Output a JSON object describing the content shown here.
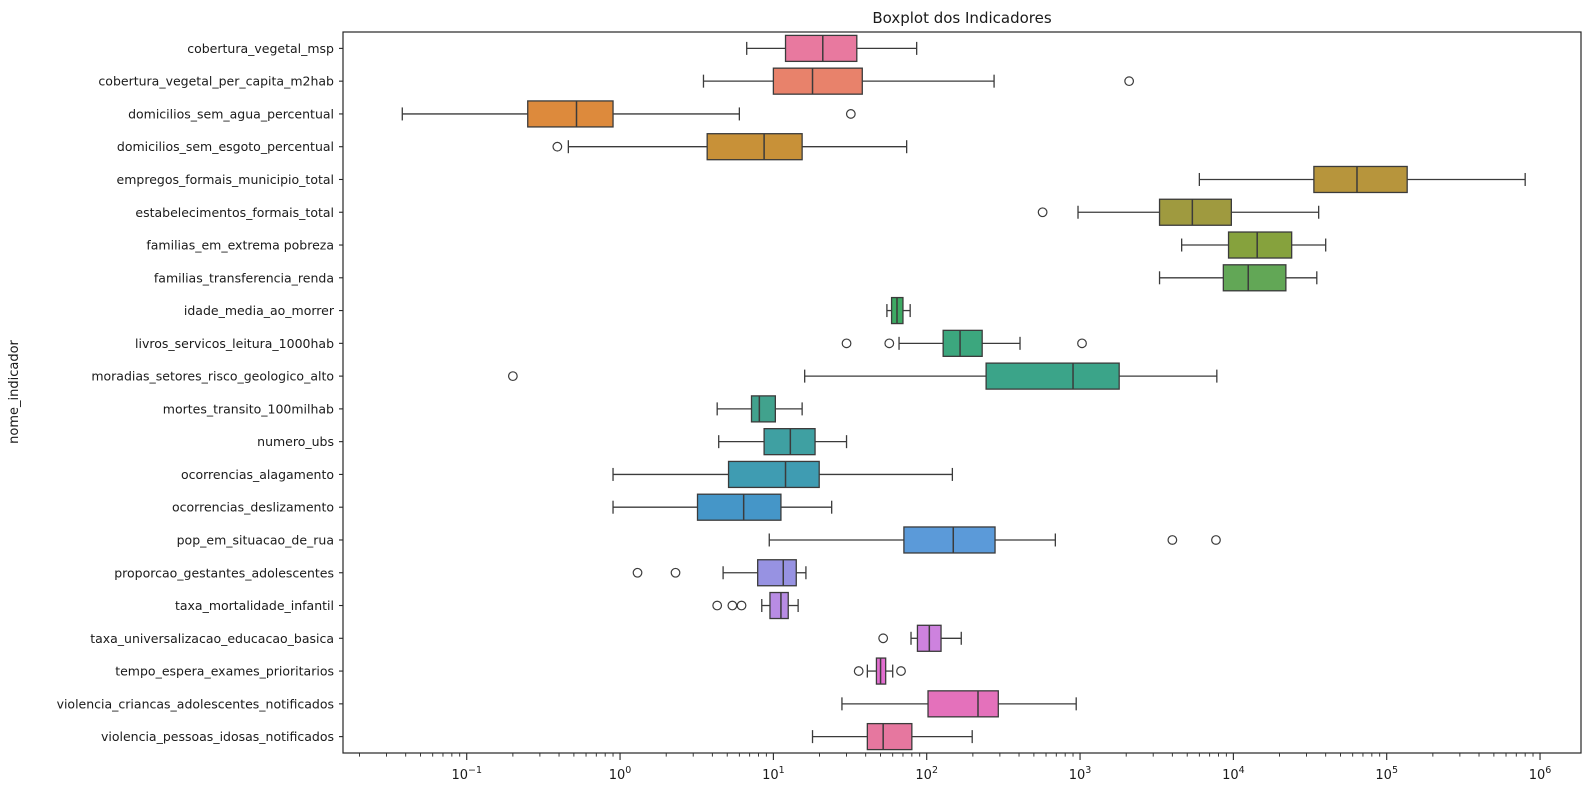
{
  "chart_data": {
    "type": "box",
    "orientation": "horizontal",
    "title": "Boxplot dos Indicadores",
    "ylabel": "nome_indicador",
    "xlabel": "",
    "x_scale": "log10",
    "grid": false,
    "legend": "none",
    "xlim": [
      0.0156,
      1850000
    ],
    "x_tick_exponents": [
      -1,
      0,
      1,
      2,
      3,
      4,
      5,
      6
    ],
    "x_tick_base": "10",
    "edge_color": "#3b3b3b",
    "spine_color": "#262626",
    "categories": [
      "cobertura_vegetal_msp",
      "cobertura_vegetal_per_capita_m2hab",
      "domicilios_sem_agua_percentual",
      "domicilios_sem_esgoto_percentual",
      "empregos_formais_municipio_total",
      "estabelecimentos_formais_total",
      "familias_em_extrema pobreza",
      "familias_transferencia_renda",
      "idade_media_ao_morrer",
      "livros_servicos_leitura_1000hab",
      "moradias_setores_risco_geologico_alto",
      "mortes_transito_100milhab",
      "numero_ubs",
      "ocorrencias_alagamento",
      "ocorrencias_deslizamento",
      "pop_em_situacao_de_rua",
      "proporcao_gestantes_adolescentes",
      "taxa_mortalidade_infantil",
      "taxa_universalizacao_educacao_basica",
      "tempo_espera_exames_prioritarios",
      "violencia_criancas_adolescentes_notificados",
      "violencia_pessoas_idosas_notificados"
    ],
    "boxes": [
      {
        "name": "cobertura_vegetal_msp",
        "whislo": 6.7,
        "q1": 12,
        "med": 21,
        "q3": 35,
        "whishi": 86,
        "outliers": [],
        "color": "#e8799f"
      },
      {
        "name": "cobertura_vegetal_per_capita_m2hab",
        "whislo": 3.5,
        "q1": 10,
        "med": 18,
        "q3": 38,
        "whishi": 275,
        "outliers": [
          2090
        ],
        "color": "#e8826b"
      },
      {
        "name": "domicilios_sem_agua_percentual",
        "whislo": 0.038,
        "q1": 0.25,
        "med": 0.52,
        "q3": 0.9,
        "whishi": 6.0,
        "outliers": [
          32
        ],
        "color": "#dd8a3c"
      },
      {
        "name": "domicilios_sem_esgoto_percentual",
        "whislo": 0.46,
        "q1": 3.7,
        "med": 8.7,
        "q3": 15.4,
        "whishi": 74,
        "outliers": [
          0.39
        ],
        "color": "#c89138"
      },
      {
        "name": "empregos_formais_municipio_total",
        "whislo": 6000,
        "q1": 33500,
        "med": 64000,
        "q3": 136000,
        "whishi": 800000,
        "outliers": [],
        "color": "#b7953c"
      },
      {
        "name": "estabelecimentos_formais_total",
        "whislo": 970,
        "q1": 3300,
        "med": 5400,
        "q3": 9700,
        "whishi": 36000,
        "outliers": [
          570
        ],
        "color": "#9f9a3f"
      },
      {
        "name": "familias_em_extrema pobreza",
        "whislo": 4600,
        "q1": 9300,
        "med": 14300,
        "q3": 24000,
        "whishi": 40000,
        "outliers": [],
        "color": "#86a23d"
      },
      {
        "name": "familias_transferencia_renda",
        "whislo": 3300,
        "q1": 8600,
        "med": 12500,
        "q3": 22000,
        "whishi": 35000,
        "outliers": [],
        "color": "#62a756"
      },
      {
        "name": "idade_media_ao_morrer",
        "whislo": 55,
        "q1": 59,
        "med": 64,
        "q3": 70,
        "whishi": 78,
        "outliers": [],
        "color": "#3daa63"
      },
      {
        "name": "livros_servicos_leitura_1000hab",
        "whislo": 66,
        "q1": 128,
        "med": 165,
        "q3": 230,
        "whishi": 406,
        "outliers": [
          30,
          57,
          1030
        ],
        "color": "#3ca77e"
      },
      {
        "name": "moradias_setores_risco_geologico_alto",
        "whislo": 16,
        "q1": 244,
        "med": 900,
        "q3": 1800,
        "whishi": 7800,
        "outliers": [
          0.2
        ],
        "color": "#3ba489"
      },
      {
        "name": "mortes_transito_100milhab",
        "whislo": 4.3,
        "q1": 7.2,
        "med": 8.1,
        "q3": 10.3,
        "whishi": 15.4,
        "outliers": [],
        "color": "#41a28d"
      },
      {
        "name": "numero_ubs",
        "whislo": 4.4,
        "q1": 8.7,
        "med": 12.9,
        "q3": 18.7,
        "whishi": 30,
        "outliers": [],
        "color": "#3fa0a2"
      },
      {
        "name": "ocorrencias_alagamento",
        "whislo": 0.9,
        "q1": 5.1,
        "med": 12,
        "q3": 19.9,
        "whishi": 147,
        "outliers": [],
        "color": "#3f9cb2"
      },
      {
        "name": "ocorrencias_deslizamento",
        "whislo": 0.9,
        "q1": 3.2,
        "med": 6.4,
        "q3": 11.2,
        "whishi": 24,
        "outliers": [],
        "color": "#4596c8"
      },
      {
        "name": "pop_em_situacao_de_rua",
        "whislo": 9.4,
        "q1": 71,
        "med": 149,
        "q3": 279,
        "whishi": 690,
        "outliers": [
          4000,
          7700
        ],
        "color": "#5b9ad9"
      },
      {
        "name": "proporcao_gestantes_adolescentes",
        "whislo": 4.7,
        "q1": 7.9,
        "med": 11.6,
        "q3": 14.1,
        "whishi": 16.3,
        "outliers": [
          1.3,
          2.3
        ],
        "color": "#9792e2"
      },
      {
        "name": "taxa_mortalidade_infantil",
        "whislo": 8.4,
        "q1": 9.5,
        "med": 11.2,
        "q3": 12.5,
        "whishi": 14.5,
        "outliers": [
          4.3,
          5.4,
          6.2
        ],
        "color": "#b88ce4"
      },
      {
        "name": "taxa_universalizacao_educacao_basica",
        "whislo": 79,
        "q1": 87,
        "med": 104,
        "q3": 124,
        "whishi": 168,
        "outliers": [
          52
        ],
        "color": "#cd82de"
      },
      {
        "name": "tempo_espera_exames_prioritarios",
        "whislo": 41,
        "q1": 47,
        "med": 50,
        "q3": 54,
        "whishi": 60,
        "outliers": [
          36,
          68
        ],
        "color": "#e26ed0"
      },
      {
        "name": "violencia_criancas_adolescentes_notificados",
        "whislo": 28,
        "q1": 102,
        "med": 216,
        "q3": 293,
        "whishi": 944,
        "outliers": [],
        "color": "#e471bb"
      },
      {
        "name": "violencia_pessoas_idosas_notificados",
        "whislo": 18,
        "q1": 41,
        "med": 52,
        "q3": 80,
        "whishi": 198,
        "outliers": [],
        "color": "#e6779f"
      }
    ]
  }
}
